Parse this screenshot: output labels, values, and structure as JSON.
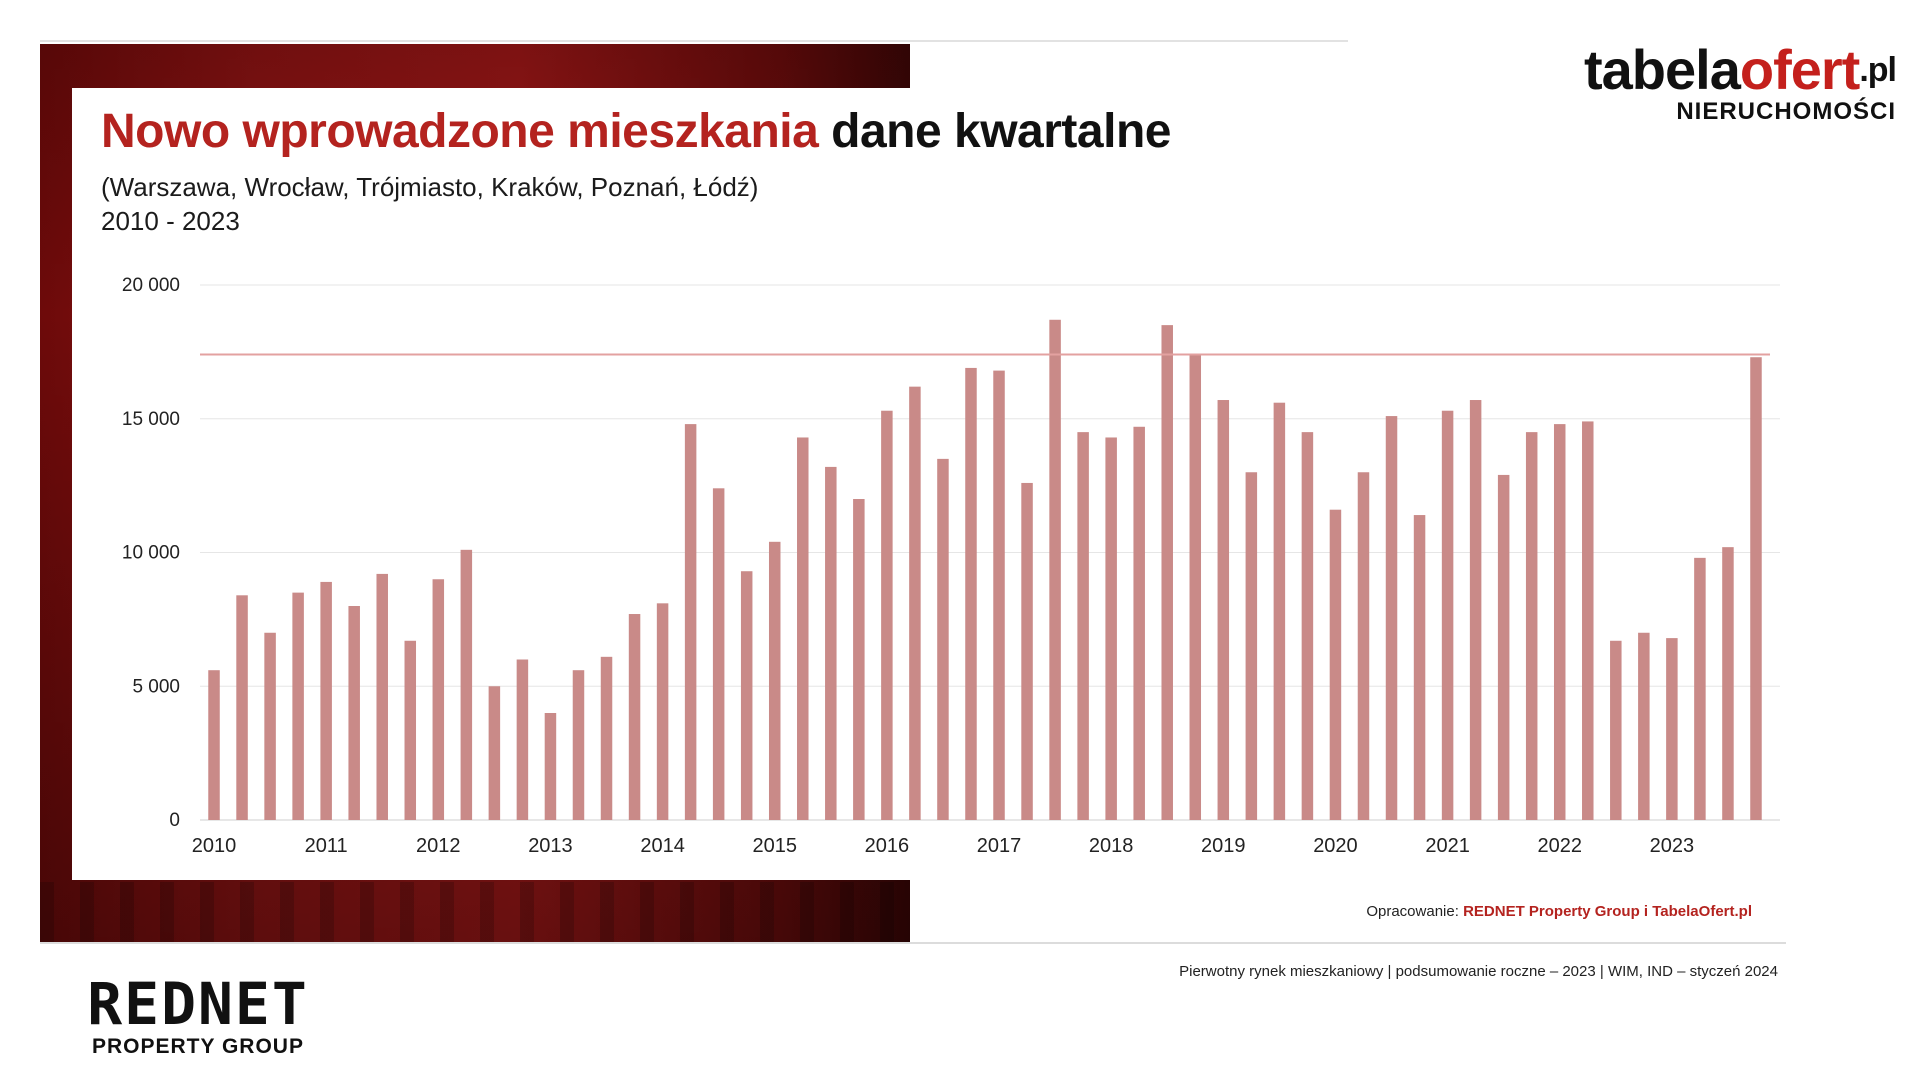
{
  "header": {
    "title_highlight": "Nowo wprowadzone mieszkania",
    "title_rest": "dane kwartalne",
    "subtitle_line1": "(Warszawa, Wrocław, Trójmiasto, Kraków, Poznań, Łódź)",
    "subtitle_line2": "2010 - 2023"
  },
  "logo_right": {
    "brand_black": "tabela",
    "brand_red": "ofert",
    "brand_suffix": ".pl",
    "tagline": "NIERUCHOMOŚCI"
  },
  "logo_left": {
    "brand": "REDNET",
    "tagline": "PROPERTY GROUP"
  },
  "source": {
    "label": "Opracowanie:",
    "value": "REDNET Property Group i TabelaOfert.pl"
  },
  "footer": {
    "note": "Pierwotny rynek mieszkaniowy | podsumowanie roczne – 2023 | WIM, IND – styczeń 2024"
  },
  "colors": {
    "accent": "#b4231f",
    "bar": "#c98a88",
    "reference_line": "#e3a1a0"
  },
  "chart_data": {
    "type": "bar",
    "title": "",
    "xlabel": "",
    "ylabel": "",
    "ylim": [
      0,
      20000
    ],
    "yticks": [
      0,
      5000,
      10000,
      15000,
      20000
    ],
    "ytick_labels": [
      "0",
      "5 000",
      "10 000",
      "15 000",
      "20 000"
    ],
    "xtick_labels": [
      "2010",
      "2011",
      "2012",
      "2013",
      "2014",
      "2015",
      "2016",
      "2017",
      "2018",
      "2019",
      "2020",
      "2021",
      "2022",
      "2023"
    ],
    "grid": true,
    "legend": "none",
    "reference_line": 17400,
    "categories": [
      "2010 Q1",
      "2010 Q2",
      "2010 Q3",
      "2010 Q4",
      "2011 Q1",
      "2011 Q2",
      "2011 Q3",
      "2011 Q4",
      "2012 Q1",
      "2012 Q2",
      "2012 Q3",
      "2012 Q4",
      "2013 Q1",
      "2013 Q2",
      "2013 Q3",
      "2013 Q4",
      "2014 Q1",
      "2014 Q2",
      "2014 Q3",
      "2014 Q4",
      "2015 Q1",
      "2015 Q2",
      "2015 Q3",
      "2015 Q4",
      "2016 Q1",
      "2016 Q2",
      "2016 Q3",
      "2016 Q4",
      "2017 Q1",
      "2017 Q2",
      "2017 Q3",
      "2017 Q4",
      "2018 Q1",
      "2018 Q2",
      "2018 Q3",
      "2018 Q4",
      "2019 Q1",
      "2019 Q2",
      "2019 Q3",
      "2019 Q4",
      "2020 Q1",
      "2020 Q2",
      "2020 Q3",
      "2020 Q4",
      "2021 Q1",
      "2021 Q2",
      "2021 Q3",
      "2021 Q4",
      "2022 Q1",
      "2022 Q2",
      "2022 Q3",
      "2022 Q4",
      "2023 Q1",
      "2023 Q2",
      "2023 Q3",
      "2023 Q4"
    ],
    "values": [
      5600,
      8400,
      7000,
      8500,
      8900,
      8000,
      9200,
      6700,
      9000,
      10100,
      5000,
      6000,
      4000,
      5600,
      6100,
      7700,
      8100,
      14800,
      12400,
      9300,
      10400,
      14300,
      13200,
      12000,
      15300,
      16200,
      13500,
      16900,
      16800,
      12600,
      18700,
      14500,
      14300,
      14700,
      18500,
      17400,
      15700,
      13000,
      15600,
      14500,
      11600,
      13000,
      15100,
      11400,
      15300,
      15700,
      12900,
      14500,
      14800,
      14900,
      6700,
      7000,
      6800,
      9800,
      10200,
      17300
    ]
  }
}
